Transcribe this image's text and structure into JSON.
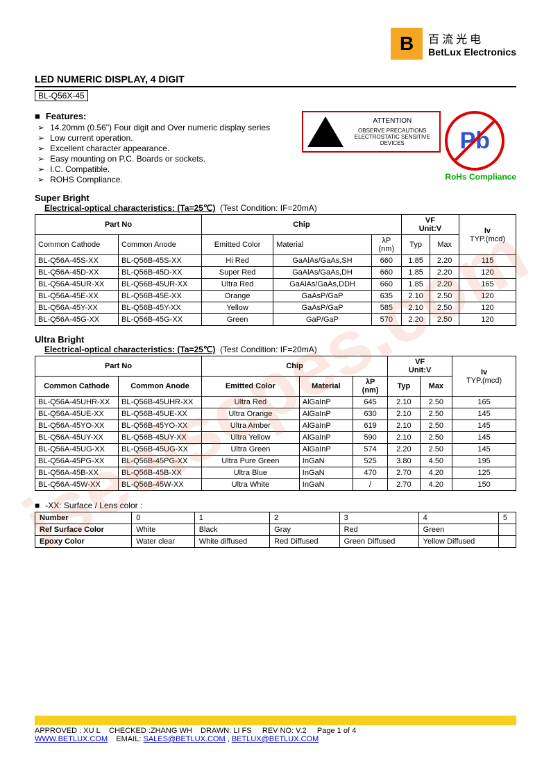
{
  "watermark": "iseeiscpes.com",
  "company": {
    "logo_letter": "B",
    "cn": "百流光电",
    "en": "BetLux Electronics"
  },
  "title": "LED NUMERIC DISPLAY, 4 DIGIT",
  "part_family": "BL-Q56X-45",
  "features_heading": "Features:",
  "features": [
    "14.20mm (0.56\") Four digit and Over numeric display series",
    "Low current operation.",
    "Excellent character appearance.",
    "Easy mounting on P.C. Boards or sockets.",
    "I.C. Compatible.",
    "ROHS Compliance."
  ],
  "esd": {
    "attention": "ATTENTION",
    "text": "OBSERVE PRECAUTIONS ELECTROSTATIC SENSITIVE DEVICES"
  },
  "rohs": {
    "pb": "Pb",
    "label": "RoHs Compliance"
  },
  "super_bright": {
    "title": "Super Bright",
    "subtitle": "Electrical-optical characteristics: (Ta=25℃)",
    "condition": "(Test Condition: IF=20mA)",
    "headers": {
      "part_no": "Part No",
      "chip": "Chip",
      "vf": "VF",
      "vf_unit": "Unit:V",
      "iv": "Iv",
      "iv_unit": "TYP.(mcd)",
      "common_cathode": "Common Cathode",
      "common_anode": "Common Anode",
      "emitted_color": "Emitted Color",
      "material": "Material",
      "lambda": "λP",
      "lambda_unit": "(nm)",
      "typ": "Typ",
      "max": "Max"
    },
    "rows": [
      {
        "cc": "BL-Q56A-45S-XX",
        "ca": "BL-Q56B-45S-XX",
        "color": "Hi Red",
        "material": "GaAlAs/GaAs,SH",
        "nm": "660",
        "typ": "1.85",
        "max": "2.20",
        "iv": "115"
      },
      {
        "cc": "BL-Q56A-45D-XX",
        "ca": "BL-Q56B-45D-XX",
        "color": "Super Red",
        "material": "GaAlAs/GaAs,DH",
        "nm": "660",
        "typ": "1.85",
        "max": "2.20",
        "iv": "120"
      },
      {
        "cc": "BL-Q56A-45UR-XX",
        "ca": "BL-Q56B-45UR-XX",
        "color": "Ultra Red",
        "material": "GaAlAs/GaAs,DDH",
        "nm": "660",
        "typ": "1.85",
        "max": "2.20",
        "iv": "165"
      },
      {
        "cc": "BL-Q56A-45E-XX",
        "ca": "BL-Q56B-45E-XX",
        "color": "Orange",
        "material": "GaAsP/GaP",
        "nm": "635",
        "typ": "2.10",
        "max": "2.50",
        "iv": "120"
      },
      {
        "cc": "BL-Q56A-45Y-XX",
        "ca": "BL-Q56B-45Y-XX",
        "color": "Yellow",
        "material": "GaAsP/GaP",
        "nm": "585",
        "typ": "2.10",
        "max": "2.50",
        "iv": "120"
      },
      {
        "cc": "BL-Q56A-45G-XX",
        "ca": "BL-Q56B-45G-XX",
        "color": "Green",
        "material": "GaP/GaP",
        "nm": "570",
        "typ": "2.20",
        "max": "2.50",
        "iv": "120"
      }
    ]
  },
  "ultra_bright": {
    "title": "Ultra Bright",
    "subtitle": "Electrical-optical characteristics: (Ta=25℃)",
    "condition": "(Test Condition: IF=20mA)",
    "rows": [
      {
        "cc": "BL-Q56A-45UHR-XX",
        "ca": "BL-Q56B-45UHR-XX",
        "color": "Ultra Red",
        "material": "AlGaInP",
        "nm": "645",
        "typ": "2.10",
        "max": "2.50",
        "iv": "165"
      },
      {
        "cc": "BL-Q56A-45UE-XX",
        "ca": "BL-Q56B-45UE-XX",
        "color": "Ultra Orange",
        "material": "AlGaInP",
        "nm": "630",
        "typ": "2.10",
        "max": "2.50",
        "iv": "145"
      },
      {
        "cc": "BL-Q56A-45YO-XX",
        "ca": "BL-Q56B-45YO-XX",
        "color": "Ultra Amber",
        "material": "AlGaInP",
        "nm": "619",
        "typ": "2.10",
        "max": "2.50",
        "iv": "145"
      },
      {
        "cc": "BL-Q56A-45UY-XX",
        "ca": "BL-Q56B-45UY-XX",
        "color": "Ultra Yellow",
        "material": "AlGaInP",
        "nm": "590",
        "typ": "2.10",
        "max": "2.50",
        "iv": "145"
      },
      {
        "cc": "BL-Q56A-45UG-XX",
        "ca": "BL-Q56B-45UG-XX",
        "color": "Ultra Green",
        "material": "AlGaInP",
        "nm": "574",
        "typ": "2.20",
        "max": "2.50",
        "iv": "145"
      },
      {
        "cc": "BL-Q56A-45PG-XX",
        "ca": "BL-Q56B-45PG-XX",
        "color": "Ultra Pure Green",
        "material": "InGaN",
        "nm": "525",
        "typ": "3.80",
        "max": "4.50",
        "iv": "195"
      },
      {
        "cc": "BL-Q56A-45B-XX",
        "ca": "BL-Q56B-45B-XX",
        "color": "Ultra Blue",
        "material": "InGaN",
        "nm": "470",
        "typ": "2.70",
        "max": "4.20",
        "iv": "125"
      },
      {
        "cc": "BL-Q56A-45W-XX",
        "ca": "BL-Q56B-45W-XX",
        "color": "Ultra White",
        "material": "InGaN",
        "nm": "/",
        "typ": "2.70",
        "max": "4.20",
        "iv": "150"
      }
    ]
  },
  "lens": {
    "heading": "-XX: Surface / Lens color :",
    "number_label": "Number",
    "ref_label": "Ref Surface Color",
    "epoxy_label": "Epoxy Color",
    "numbers": [
      "0",
      "1",
      "2",
      "3",
      "4",
      "5"
    ],
    "ref_colors": [
      "White",
      "Black",
      "Gray",
      "Red",
      "Green",
      ""
    ],
    "epoxy_colors": [
      "Water clear",
      "White diffused",
      "Red Diffused",
      "Green Diffused",
      "Yellow Diffused",
      ""
    ]
  },
  "footer": {
    "approved": "APPROVED : XU L",
    "checked": "CHECKED  :ZHANG WH",
    "drawn": "DRAWN:  LI  FS",
    "rev": "REV  NO:  V.2",
    "page": "Page 1 of 4",
    "url": "WWW.BETLUX.COM",
    "email_label": "EMAIL:",
    "email1": "SALES@BETLUX.COM",
    "email2": "BETLUX@BETLUX.COM"
  },
  "colors": {
    "accent_yellow": "#f5d020",
    "logo_bg": "#f5a623",
    "esd_border": "#c00",
    "link": "#0000cc",
    "rohs_green": "#0a0",
    "pb_blue": "#3355cc"
  }
}
